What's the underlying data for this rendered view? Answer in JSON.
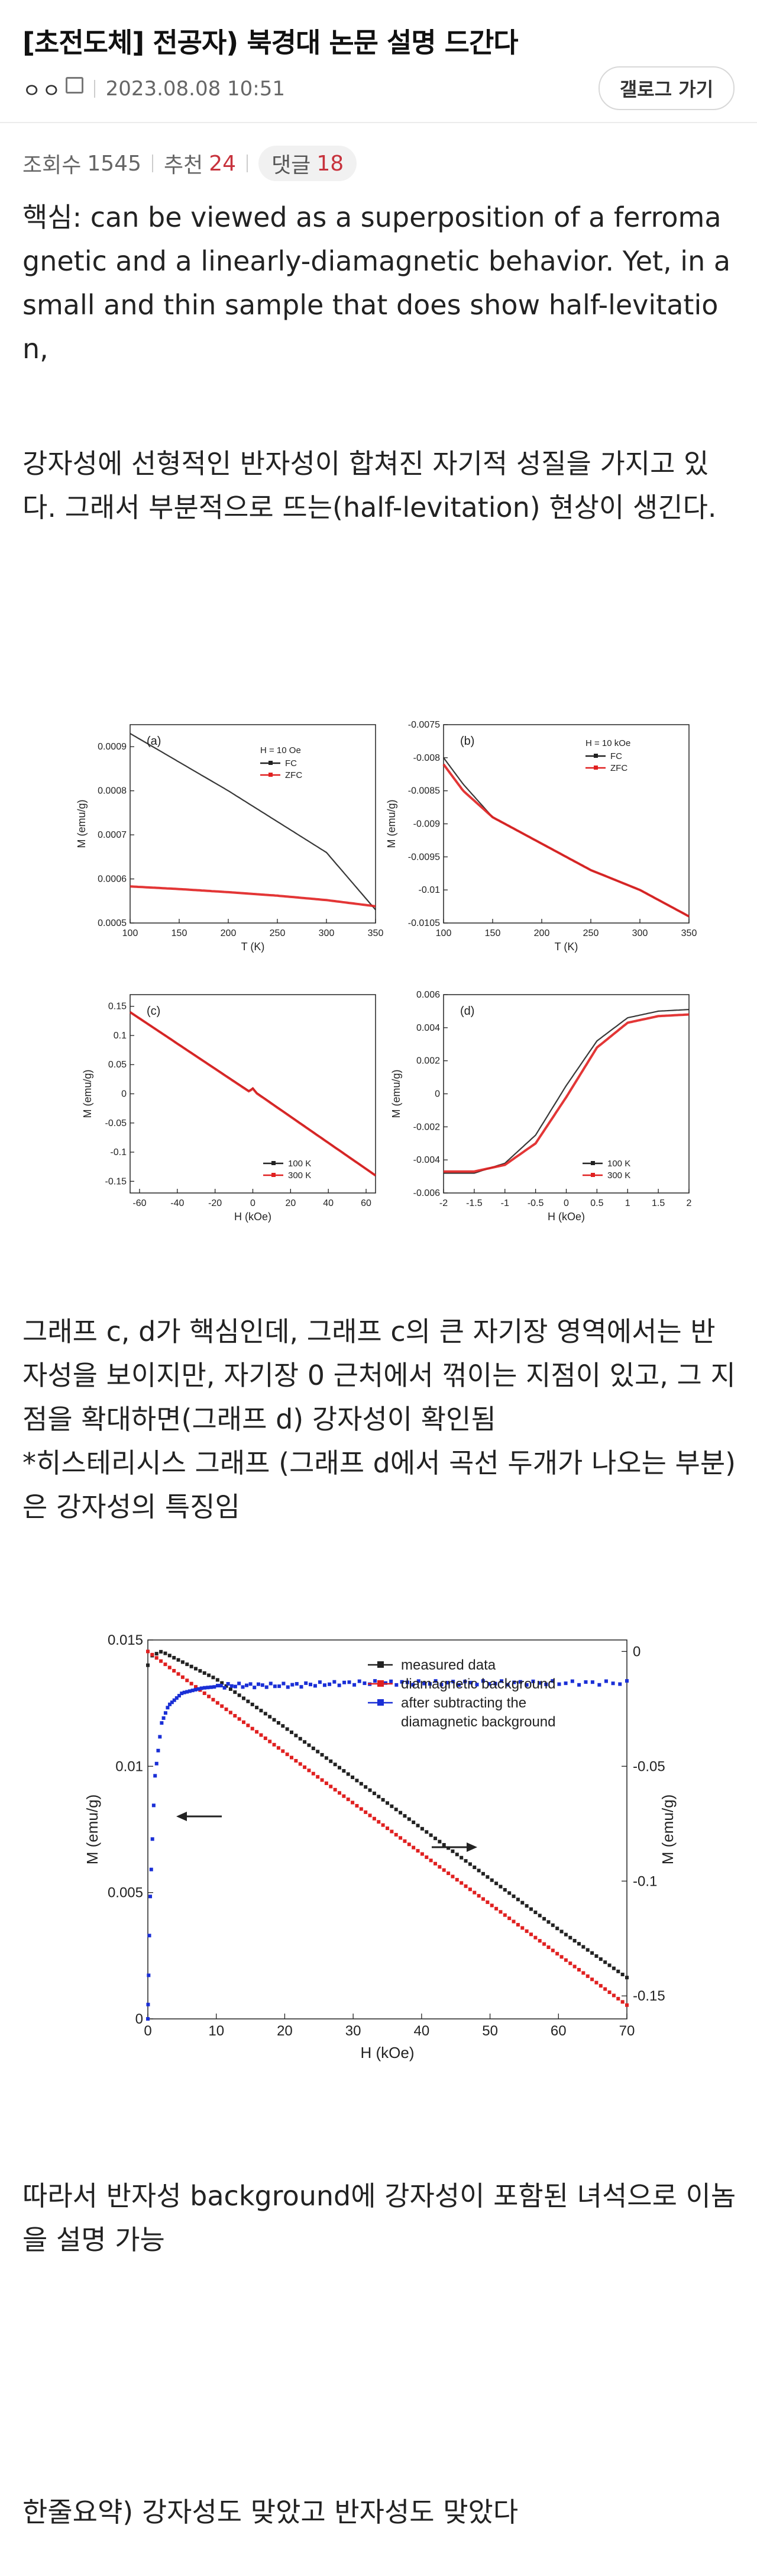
{
  "post": {
    "title": "[초전도체] 전공자) 북경대 논문 설명 드간다",
    "author": "ㅇㅇ",
    "date": "2023.08.08 10:51",
    "gallery_button": "갤로그 가기",
    "views_label": "조회수",
    "views": "1545",
    "recommend_label": "추천",
    "recommend": "24",
    "comments_label": "댓글",
    "comments": "18"
  },
  "body": {
    "p1": "핵심: can be viewed as a superposition of a ferromagnetic and a linearly-diamagnetic behavior. Yet, in a small and thin sample that does show half-levitation,",
    "p2": "강자성에 선형적인 반자성이 합쳐진 자기적 성질을 가지고 있다. 그래서 부분적으로 뜨는(half-levitation) 현상이 생긴다.",
    "p3": "그래프 c, d가 핵심인데, 그래프 c의 큰 자기장 영역에서는 반자성을 보이지만, 자기장 0 근처에서 꺾이는 지점이 있고, 그 지점을 확대하면(그래프 d) 강자성이 확인됨",
    "p4": "*히스테리시스 그래프 (그래프 d에서 곡선 두개가 나오는 부분)은 강자성의 특징임",
    "p5": "따라서 반자성 background에 강자성이 포함된 녀석으로 이놈을 설명 가능",
    "p6": "한줄요약) 강자성도 맞았고 반자성도 맞았다"
  },
  "figure1": {
    "a": {
      "tag": "(a)",
      "field": "H = 10 Oe",
      "legend": [
        "FC",
        "ZFC"
      ],
      "xlabel": "T (K)",
      "ylabel": "M (emu/g)",
      "xticks": [
        "100",
        "150",
        "200",
        "250",
        "300",
        "350"
      ],
      "yticks": [
        "0.0005",
        "0.0006",
        "0.0007",
        "0.0008",
        "0.0009"
      ]
    },
    "b": {
      "tag": "(b)",
      "field": "H = 10 kOe",
      "legend": [
        "FC",
        "ZFC"
      ],
      "xlabel": "T (K)",
      "ylabel": "M (emu/g)",
      "xticks": [
        "100",
        "150",
        "200",
        "250",
        "300",
        "350"
      ],
      "yticks": [
        "-0.0075",
        "-0.008",
        "-0.0085",
        "-0.009",
        "-0.0095",
        "-0.01",
        "-0.0105"
      ]
    },
    "c": {
      "tag": "(c)",
      "legend": [
        "100 K",
        "300 K"
      ],
      "xlabel": "H (kOe)",
      "ylabel": "M (emu/g)",
      "xticks": [
        "-60",
        "-40",
        "-20",
        "0",
        "20",
        "40",
        "60"
      ],
      "yticks": [
        "0.15",
        "0.1",
        "0.05",
        "0",
        "-0.05",
        "-0.1",
        "-0.15"
      ]
    },
    "d": {
      "tag": "(d)",
      "legend": [
        "100 K",
        "300 K"
      ],
      "xlabel": "H (kOe)",
      "ylabel": "M (emu/g)",
      "xticks": [
        "-2",
        "-1.5",
        "-1",
        "-0.5",
        "0",
        "0.5",
        "1",
        "1.5",
        "2"
      ],
      "yticks": [
        "0.006",
        "0.004",
        "0.002",
        "0",
        "-0.002",
        "-0.004",
        "-0.006"
      ]
    }
  },
  "figure2": {
    "legend": [
      "measured data",
      "diamagnetic background",
      "after subtracting the",
      "diamagnetic background"
    ],
    "xlabel": "H (kOe)",
    "ylabel_left": "M (emu/g)",
    "ylabel_right": "M (emu/g)",
    "xticks": [
      "0",
      "10",
      "20",
      "30",
      "40",
      "50",
      "60",
      "70"
    ],
    "yticks_left": [
      "0.015",
      "0.01",
      "0.005",
      "0"
    ],
    "yticks_right": [
      "0",
      "-0.05",
      "-0.1",
      "-0.15"
    ]
  },
  "colors": {
    "accent_red": "#c7323c",
    "series_black": "#222222",
    "series_red": "#e02020",
    "series_blue": "#1a2fd6"
  },
  "chart_data": [
    {
      "type": "line",
      "xlabel": "T (K)",
      "ylabel": "M (emu/g)",
      "xlim": [
        100,
        350
      ],
      "ylim": [
        0.0005,
        0.00095
      ],
      "series": [
        {
          "name": "FC",
          "x": [
            100,
            150,
            200,
            250,
            300,
            350
          ],
          "y": [
            0.00093,
            0.000865,
            0.0008,
            0.00073,
            0.00066,
            0.00053
          ]
        },
        {
          "name": "ZFC",
          "x": [
            100,
            150,
            200,
            250,
            300,
            350
          ],
          "y": [
            0.000583,
            0.000577,
            0.00057,
            0.000562,
            0.000552,
            0.000538
          ]
        }
      ]
    },
    {
      "type": "line",
      "xlabel": "T (K)",
      "ylabel": "M (emu/g)",
      "xlim": [
        100,
        350
      ],
      "ylim": [
        -0.0105,
        -0.0075
      ],
      "series": [
        {
          "name": "FC",
          "x": [
            100,
            120,
            150,
            200,
            250,
            300,
            350
          ],
          "y": [
            -0.008,
            -0.0084,
            -0.0089,
            -0.0093,
            -0.0097,
            -0.01,
            -0.0104
          ]
        },
        {
          "name": "ZFC",
          "x": [
            100,
            120,
            150,
            200,
            250,
            300,
            350
          ],
          "y": [
            -0.0081,
            -0.0085,
            -0.0089,
            -0.0093,
            -0.0097,
            -0.01,
            -0.0104
          ]
        }
      ]
    },
    {
      "type": "line",
      "xlabel": "H (kOe)",
      "ylabel": "M (emu/g)",
      "xlim": [
        -65,
        65
      ],
      "ylim": [
        -0.17,
        0.17
      ],
      "series": [
        {
          "name": "100 K",
          "x": [
            -65,
            -2,
            0,
            2,
            65
          ],
          "y": [
            0.14,
            0.005,
            0.01,
            0.002,
            -0.14
          ]
        },
        {
          "name": "300 K",
          "x": [
            -65,
            -2,
            0,
            2,
            65
          ],
          "y": [
            0.14,
            0.004,
            0.009,
            0.001,
            -0.14
          ]
        }
      ]
    },
    {
      "type": "line",
      "xlabel": "H (kOe)",
      "ylabel": "M (emu/g)",
      "xlim": [
        -2,
        2
      ],
      "ylim": [
        -0.006,
        0.006
      ],
      "series": [
        {
          "name": "100 K",
          "x": [
            -2,
            -1.5,
            -1,
            -0.5,
            0,
            0.5,
            1,
            1.5,
            2
          ],
          "y": [
            -0.0048,
            -0.0048,
            -0.0042,
            -0.0025,
            0.0005,
            0.0032,
            0.0046,
            0.005,
            0.0051
          ]
        },
        {
          "name": "300 K",
          "x": [
            -2,
            -1.5,
            -1,
            -0.5,
            0,
            0.5,
            1,
            1.5,
            2
          ],
          "y": [
            -0.0047,
            -0.0047,
            -0.0043,
            -0.003,
            -0.0002,
            0.0028,
            0.0043,
            0.0047,
            0.0048
          ]
        }
      ]
    },
    {
      "type": "scatter",
      "xlabel": "H (kOe)",
      "ylabel": "M (emu/g)",
      "xlim": [
        0,
        70
      ],
      "ylim": [
        0,
        0.015
      ],
      "series": [
        {
          "name": "measured data",
          "axis": "right",
          "x": [
            0,
            0.5,
            2,
            10,
            20,
            30,
            40,
            50,
            60,
            70
          ],
          "y": [
            -0.006,
            -0.002,
            0,
            -0.012,
            -0.033,
            -0.055,
            -0.077,
            -0.099,
            -0.121,
            -0.142
          ]
        },
        {
          "name": "diamagnetic background",
          "axis": "right",
          "x": [
            0,
            10,
            20,
            30,
            40,
            50,
            60,
            70
          ],
          "y": [
            0,
            -0.022,
            -0.044,
            -0.066,
            -0.088,
            -0.11,
            -0.132,
            -0.154
          ]
        },
        {
          "name": "after subtracting the diamagnetic background",
          "axis": "left",
          "x": [
            0,
            0.3,
            1,
            2,
            3,
            5,
            8,
            12,
            20,
            30,
            40,
            50,
            60,
            70
          ],
          "y": [
            0,
            0.0045,
            0.0095,
            0.0117,
            0.0124,
            0.0129,
            0.0131,
            0.0132,
            0.0132,
            0.0133,
            0.0133,
            0.0133,
            0.0133,
            0.0133
          ]
        }
      ],
      "ylim_right": [
        -0.16,
        0.005
      ]
    }
  ]
}
